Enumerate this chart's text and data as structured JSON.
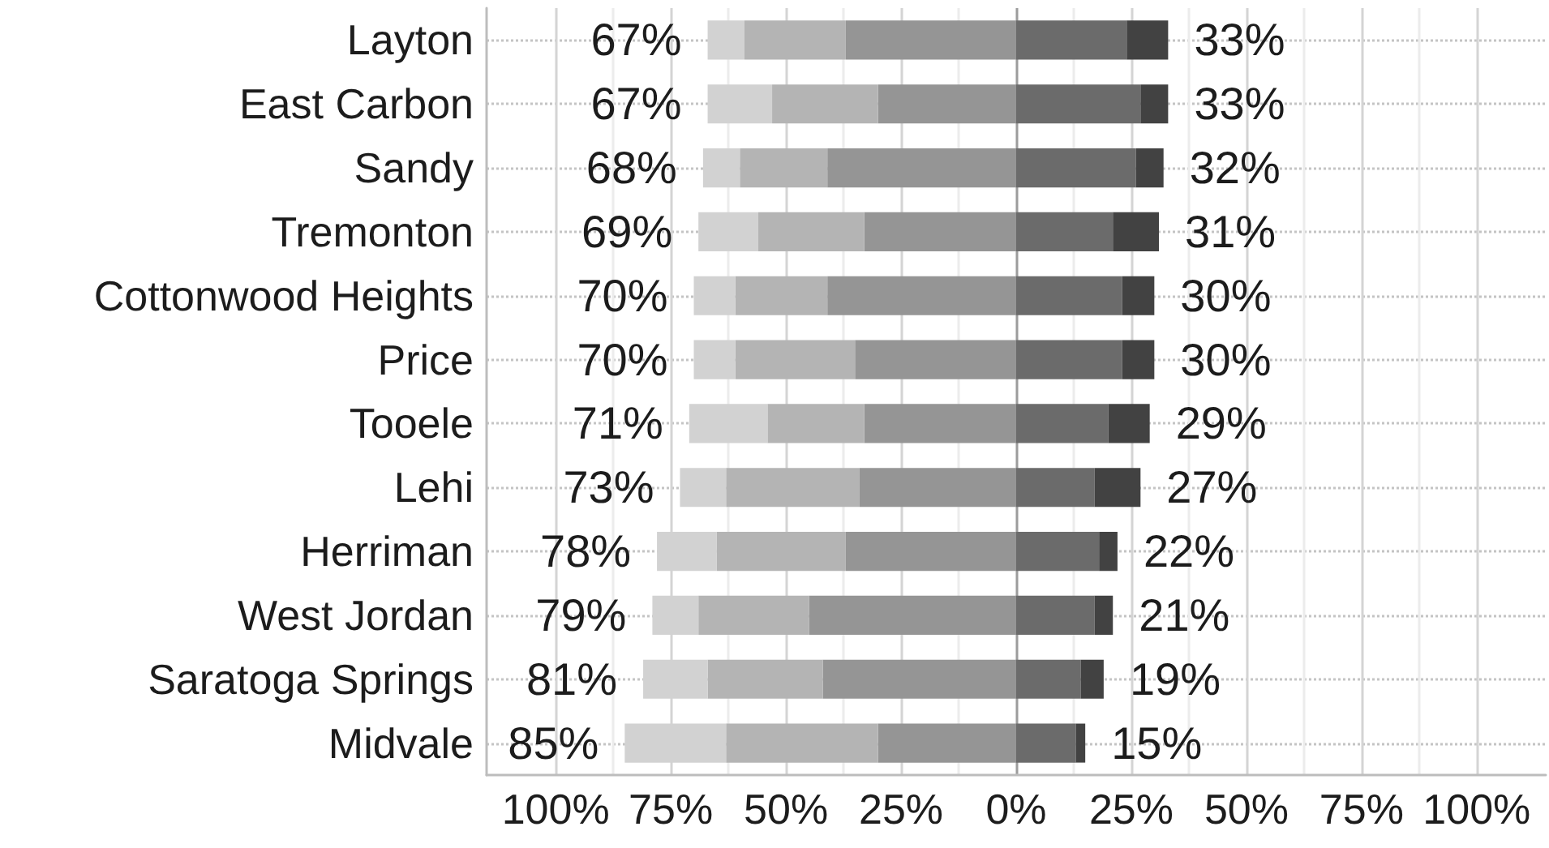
{
  "chart_data": {
    "type": "bar",
    "orientation": "horizontal",
    "stacked": true,
    "categories": [
      "Layton",
      "East Carbon",
      "Sandy",
      "Tremonton",
      "Cottonwood Heights",
      "Price",
      "Tooele",
      "Lehi",
      "Herriman",
      "West Jordan",
      "Saratoga Springs",
      "Midvale"
    ],
    "series": [
      {
        "color": "#959595",
        "values": [
          -37,
          -30,
          -41,
          -33,
          -41,
          -35,
          -33,
          -34,
          -37,
          -45,
          -42,
          -30
        ]
      },
      {
        "color": "#b4b4b4",
        "values": [
          -22,
          -23,
          -19,
          -23,
          -20,
          -26,
          -21,
          -29,
          -28,
          -24,
          -25,
          -33
        ]
      },
      {
        "color": "#d2d2d2",
        "values": [
          -8,
          -14,
          -8,
          -13,
          -9,
          -9,
          -17,
          -10,
          -13,
          -10,
          -14,
          -22
        ]
      },
      {
        "color": "#6b6b6b",
        "values": [
          24,
          27,
          26,
          21,
          23,
          23,
          20,
          17,
          18,
          17,
          14,
          13
        ]
      },
      {
        "color": "#424242",
        "values": [
          9,
          6,
          6,
          10,
          7,
          7,
          9,
          10,
          4,
          4,
          5,
          2
        ]
      }
    ],
    "xlim": [
      -115,
      115
    ],
    "xticks": [
      {
        "value": -100,
        "label": "100%"
      },
      {
        "value": -87.5,
        "label": null
      },
      {
        "value": -75,
        "label": "75%"
      },
      {
        "value": -62.5,
        "label": null
      },
      {
        "value": -50,
        "label": "50%"
      },
      {
        "value": -37.5,
        "label": null
      },
      {
        "value": -25,
        "label": "25%"
      },
      {
        "value": -12.5,
        "label": null
      },
      {
        "value": 0,
        "label": "0%"
      },
      {
        "value": 12.5,
        "label": null
      },
      {
        "value": 25,
        "label": "25%"
      },
      {
        "value": 37.5,
        "label": null
      },
      {
        "value": 50,
        "label": "50%"
      },
      {
        "value": 62.5,
        "label": null
      },
      {
        "value": 75,
        "label": "75%"
      },
      {
        "value": 87.5,
        "label": null
      },
      {
        "value": 100,
        "label": "100%"
      }
    ],
    "grid": true,
    "annotations": [
      {
        "text": "67%",
        "x": -67,
        "y": "Layton"
      },
      {
        "text": "33%",
        "x": 33,
        "y": "Layton"
      },
      {
        "text": "67%",
        "x": -67,
        "y": "East Carbon"
      },
      {
        "text": "33%",
        "x": 33,
        "y": "East Carbon"
      },
      {
        "text": "68%",
        "x": -68,
        "y": "Sandy"
      },
      {
        "text": "32%",
        "x": 32,
        "y": "Sandy"
      },
      {
        "text": "69%",
        "x": -69,
        "y": "Tremonton"
      },
      {
        "text": "31%",
        "x": 31,
        "y": "Tremonton"
      },
      {
        "text": "70%",
        "x": -70,
        "y": "Cottonwood Heights"
      },
      {
        "text": "30%",
        "x": 30,
        "y": "Cottonwood Heights"
      },
      {
        "text": "70%",
        "x": -70,
        "y": "Price"
      },
      {
        "text": "30%",
        "x": 30,
        "y": "Price"
      },
      {
        "text": "71%",
        "x": -71,
        "y": "Tooele"
      },
      {
        "text": "29%",
        "x": 29,
        "y": "Tooele"
      },
      {
        "text": "73%",
        "x": -73,
        "y": "Lehi"
      },
      {
        "text": "27%",
        "x": 27,
        "y": "Lehi"
      },
      {
        "text": "78%",
        "x": -78,
        "y": "Herriman"
      },
      {
        "text": "22%",
        "x": 22,
        "y": "Herriman"
      },
      {
        "text": "79%",
        "x": -79,
        "y": "West Jordan"
      },
      {
        "text": "21%",
        "x": 21,
        "y": "West Jordan"
      },
      {
        "text": "81%",
        "x": -81,
        "y": "Saratoga Springs"
      },
      {
        "text": "19%",
        "x": 19,
        "y": "Saratoga Springs"
      },
      {
        "text": "85%",
        "x": -85,
        "y": "Midvale"
      },
      {
        "text": "15%",
        "x": 15,
        "y": "Midvale"
      }
    ]
  }
}
